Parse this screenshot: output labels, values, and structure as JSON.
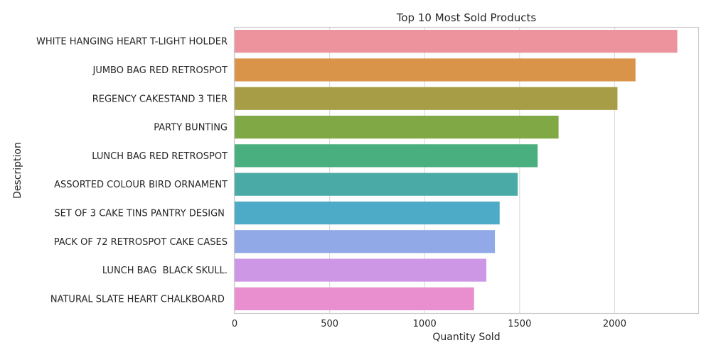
{
  "chart_data": {
    "type": "bar",
    "orientation": "horizontal",
    "title": "Top 10 Most Sold Products",
    "xlabel": "Quantity Sold",
    "ylabel": "Description",
    "xlim": [
      0,
      2440
    ],
    "xticks": [
      0,
      500,
      1000,
      1500,
      2000
    ],
    "grid": true,
    "categories": [
      "WHITE HANGING HEART T-LIGHT HOLDER",
      "JUMBO BAG RED RETROSPOT",
      "REGENCY CAKESTAND 3 TIER",
      "PARTY BUNTING",
      "LUNCH BAG RED RETROSPOT",
      "ASSORTED COLOUR BIRD ORNAMENT",
      "SET OF 3 CAKE TINS PANTRY DESIGN ",
      "PACK OF 72 RETROSPOT CAKE CASES",
      "LUNCH BAG  BLACK SKULL.",
      "NATURAL SLATE HEART CHALKBOARD "
    ],
    "values": [
      2330,
      2110,
      2015,
      1705,
      1595,
      1490,
      1395,
      1370,
      1325,
      1260
    ],
    "colors": [
      "#ec939e",
      "#d9944a",
      "#a89d47",
      "#80a845",
      "#4aaf7f",
      "#4aaaa6",
      "#4eabc8",
      "#91a9e6",
      "#cd97e6",
      "#e98fcf"
    ]
  }
}
